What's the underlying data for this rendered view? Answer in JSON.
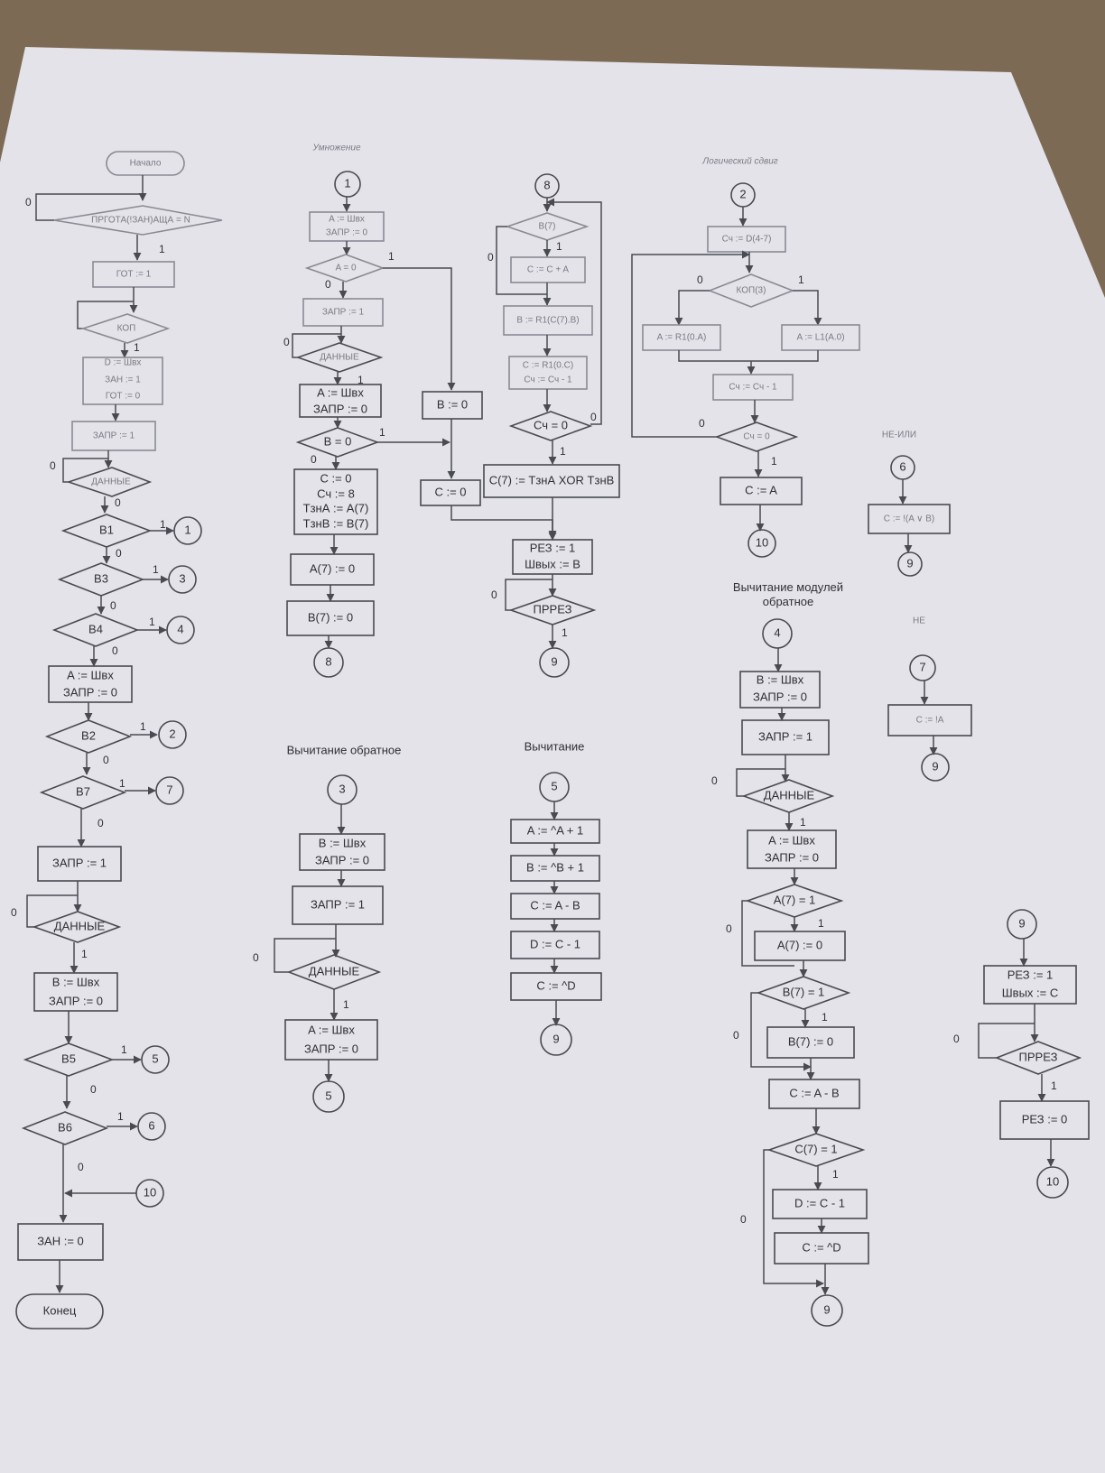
{
  "titles": {
    "mul": "Умножение",
    "lsh": "Логический сдвиг",
    "nor": "НЕ-ИЛИ",
    "subinv": "Вычитание обратное",
    "sub": "Вычитание",
    "submod": "Вычитание модулей обратное",
    "not": "НЕ"
  },
  "main": {
    "start": "Начало",
    "cond0": "ПРГОТА(!ЗАН)АЩА = N",
    "got1": "ГОТ := 1",
    "kop": "КОП",
    "block1": [
      "D := Швх",
      "ЗАН := 1",
      "ГОТ := 0"
    ],
    "zapr1": "ЗАПР := 1",
    "data": "ДАННЫЕ",
    "b1": "B1",
    "b3": "B3",
    "b4": "B4",
    "block2": [
      "A := Швх",
      "ЗАПР := 0"
    ],
    "b2": "B2",
    "b7": "B7",
    "zapr1b": "ЗАПР := 1",
    "data2": "ДАННЫЕ",
    "block3": [
      "B := Швх",
      "ЗАПР := 0"
    ],
    "b5": "B5",
    "b6": "B6",
    "zan0": "ЗАН := 0",
    "end": "Конец",
    "c1": "1",
    "c3": "3",
    "c4": "4",
    "c2": "2",
    "c7": "7",
    "c5": "5",
    "c6": "6",
    "c10": "10"
  },
  "mul": {
    "c1": "1",
    "b1": [
      "A := Швх",
      "ЗАПР := 0"
    ],
    "aeq0": "A = 0",
    "zapr1": "ЗАПР := 1",
    "data": "ДАННЫЕ",
    "b2": [
      "A := Швх",
      "ЗАПР := 0"
    ],
    "beq0": "B = 0",
    "b3": [
      "C := 0",
      "Сч := 8",
      "ТзнА := A(7)",
      "ТзнВ := B(7)"
    ],
    "a7": "A(7) := 0",
    "b7": "B(7) := 0",
    "c8": "8",
    "bset0": "B := 0",
    "cset0": "C := 0"
  },
  "loop8": {
    "c8": "8",
    "b7": "B(7)",
    "cca": "C := C + A",
    "br1": "B := R1(C(7).B)",
    "cr1": [
      "C := R1(0.C)",
      "Сч := Сч - 1"
    ],
    "sch0": "Сч = 0",
    "xor": "C(7) := ТзнА XOR ТзнВ",
    "rez": [
      "РЕЗ := 1",
      "Швых := B"
    ],
    "prez": "ПРРЕЗ",
    "c9": "9"
  },
  "lsh": {
    "c2": "2",
    "sch": "Сч := D(4-7)",
    "kop": "КОП(3)",
    "r1": "A := R1(0.A)",
    "l1": "A := L1(A.0)",
    "dec": "Сч := Сч - 1",
    "sch0": "Сч = 0",
    "ca": "C := A",
    "c10": "10"
  },
  "nor": {
    "c6": "6",
    "op": "C := !(A ∨ B)",
    "c9": "9"
  },
  "not": {
    "c7": "7",
    "op": "C := !A",
    "c9": "9"
  },
  "subinv": {
    "c3": "3",
    "b1": [
      "B := Швх",
      "ЗАПР := 0"
    ],
    "zapr1": "ЗАПР := 1",
    "data": "ДАННЫЕ",
    "b2": [
      "A := Швх",
      "ЗАПР := 0"
    ],
    "c5": "5"
  },
  "sub": {
    "c5": "5",
    "s1": "A := ^A + 1",
    "s2": "B := ^B + 1",
    "s3": "C := A - B",
    "s4": "D := C - 1",
    "s5": "C := ^D",
    "c9": "9"
  },
  "submod": {
    "c4": "4",
    "b1": [
      "B := Швх",
      "ЗАПР := 0"
    ],
    "zapr1": "ЗАПР := 1",
    "data": "ДАННЫЕ",
    "b2": [
      "A := Швх",
      "ЗАПР := 0"
    ],
    "a71": "A(7) = 1",
    "a70": "A(7) := 0",
    "b71": "B(7) = 1",
    "b70": "B(7) := 0",
    "cab": "C := A - B",
    "c71": "C(7) = 1",
    "dc1": "D := C - 1",
    "cd": "C := ^D",
    "c9": "9"
  },
  "end9": {
    "c9": "9",
    "rez": [
      "РЕЗ := 1",
      "Швых := C"
    ],
    "prez": "ПРРЕЗ",
    "rez0": "РЕЗ := 0",
    "c10": "10"
  },
  "labels": {
    "zero": "0",
    "one": "1"
  }
}
